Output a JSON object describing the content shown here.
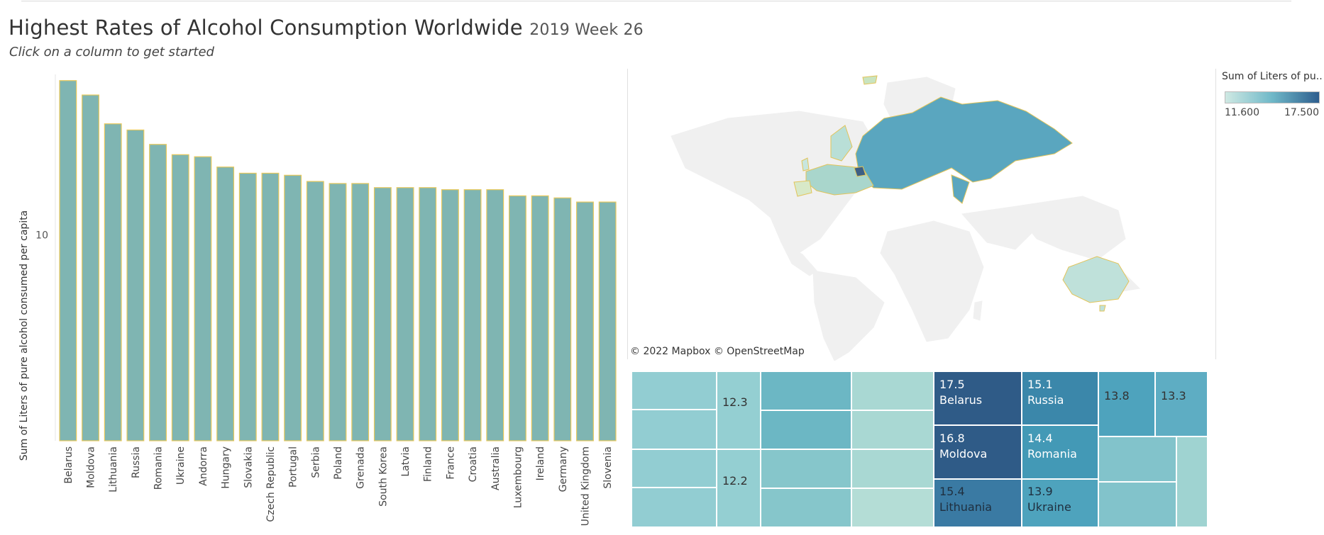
{
  "header": {
    "title": "Highest Rates of Alcohol Consumption Worldwide",
    "week": "2019 Week 26",
    "subtitle": "Click on a column to get started"
  },
  "chart_data": [
    {
      "type": "bar",
      "categories": [
        "Belarus",
        "Moldova",
        "Lithuania",
        "Russia",
        "Romania",
        "Ukraine",
        "Andorra",
        "Hungary",
        "Slovakia",
        "Czech Republic",
        "Portugal",
        "Serbia",
        "Poland",
        "Grenada",
        "South Korea",
        "Latvia",
        "Finland",
        "France",
        "Croatia",
        "Australia",
        "Luxembourg",
        "Ireland",
        "Germany",
        "United Kingdom",
        "Slovenia"
      ],
      "values": [
        17.5,
        16.8,
        15.4,
        15.1,
        14.4,
        13.9,
        13.8,
        13.3,
        13.0,
        13.0,
        12.9,
        12.6,
        12.5,
        12.5,
        12.3,
        12.3,
        12.3,
        12.2,
        12.2,
        12.2,
        11.9,
        11.9,
        11.8,
        11.6,
        11.6
      ],
      "ylabel": "Sum of Liters of pure alcohol consumed per capita",
      "yticks": [
        10
      ],
      "ylim": [
        0,
        17.8
      ],
      "bar_color": "#7fb5b2",
      "bar_border": "#e8c95c"
    },
    {
      "type": "treemap",
      "labeled_cells": [
        {
          "value": "17.5",
          "name": "Belarus"
        },
        {
          "value": "16.8",
          "name": "Moldova"
        },
        {
          "value": "15.4",
          "name": "Lithuania"
        },
        {
          "value": "15.1",
          "name": "Russia"
        },
        {
          "value": "14.4",
          "name": "Romania"
        },
        {
          "value": "13.9",
          "name": "Ukraine"
        },
        {
          "value": "13.8",
          "name": ""
        },
        {
          "value": "13.3",
          "name": ""
        },
        {
          "value": "12.3",
          "name": ""
        },
        {
          "value": "12.2",
          "name": ""
        }
      ]
    }
  ],
  "map": {
    "attribution": "© 2022 Mapbox  © OpenStreetMap"
  },
  "legend": {
    "title": "Sum of Liters of pu...",
    "min_label": "11.600",
    "max_label": "17.500",
    "min_color": "#cfe9e3",
    "max_color": "#2e5e8e"
  }
}
